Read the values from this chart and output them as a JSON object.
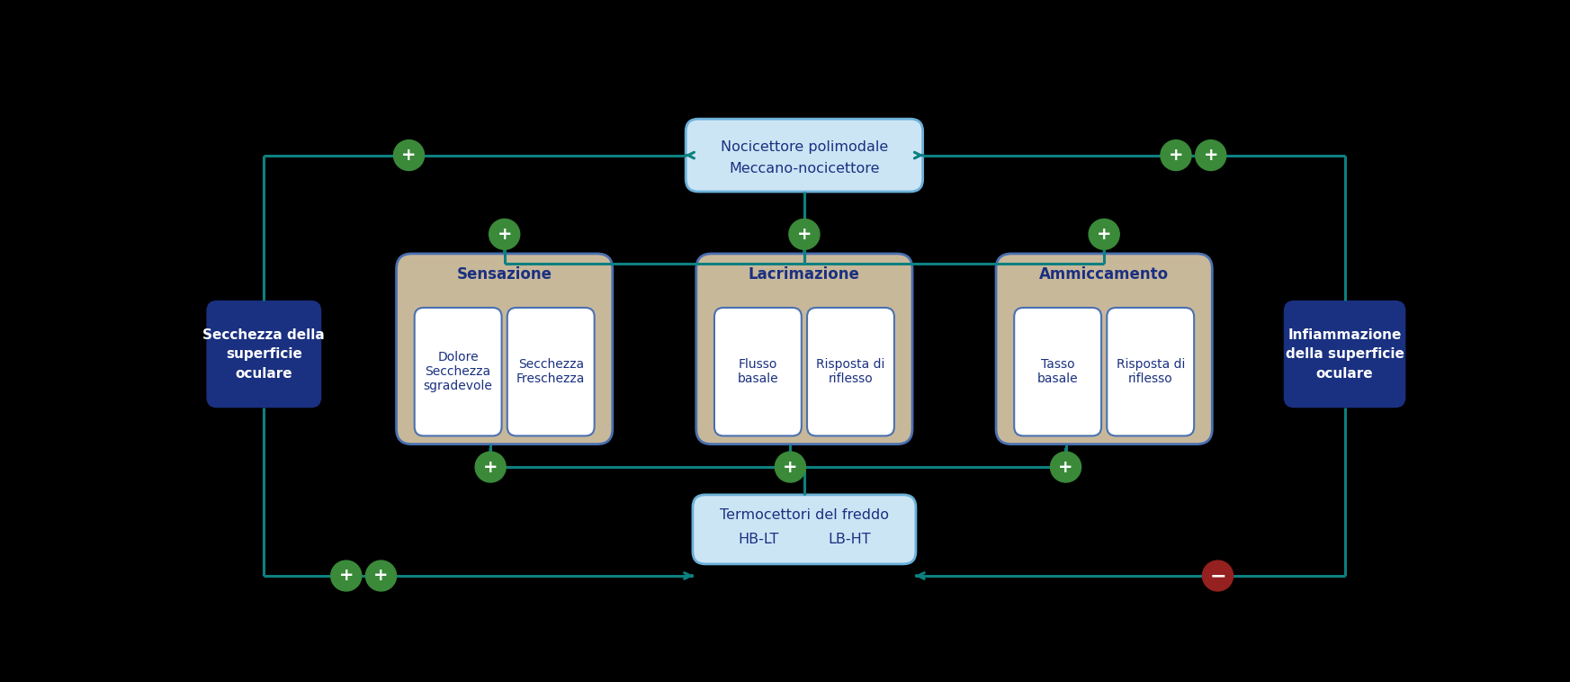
{
  "bg_color": "#000000",
  "teal": "#0d8080",
  "dark_blue": "#1a3080",
  "light_blue_box": "#cce5f5",
  "light_blue_border": "#6ab0d8",
  "tan_box": "#c8b89a",
  "white": "#ffffff",
  "white_border": "#4a70b0",
  "tan_border": "#6a6a6a",
  "green_circle": "#3a8a3a",
  "red_circle": "#952020",
  "title_top_line1": "Nocicettore polimodale",
  "title_top_line2": "Meccano-nocicettore",
  "title_bot_line1": "Termocettori del freddo",
  "label_hblt": "HB-LT",
  "label_lbht": "LB-HT",
  "label_left_line1": "Secchezza della",
  "label_left_line2": "superficie",
  "label_left_line3": "oculare",
  "label_right_line1": "Infiammazione",
  "label_right_line2": "della superficie",
  "label_right_line3": "oculare",
  "box1_title": "Sensazione",
  "box2_title": "Lacrimazione",
  "box3_title": "Ammiccamento",
  "sub1a": "Dolore\nSecchezza\nsgradevole",
  "sub1b": "Secchezza\nFreschezza",
  "sub2a": "Flusso\nbasale",
  "sub2b": "Risposta di\nriflesso",
  "sub3a": "Tasso\nbasale",
  "sub3b": "Risposta di\nriflesso"
}
